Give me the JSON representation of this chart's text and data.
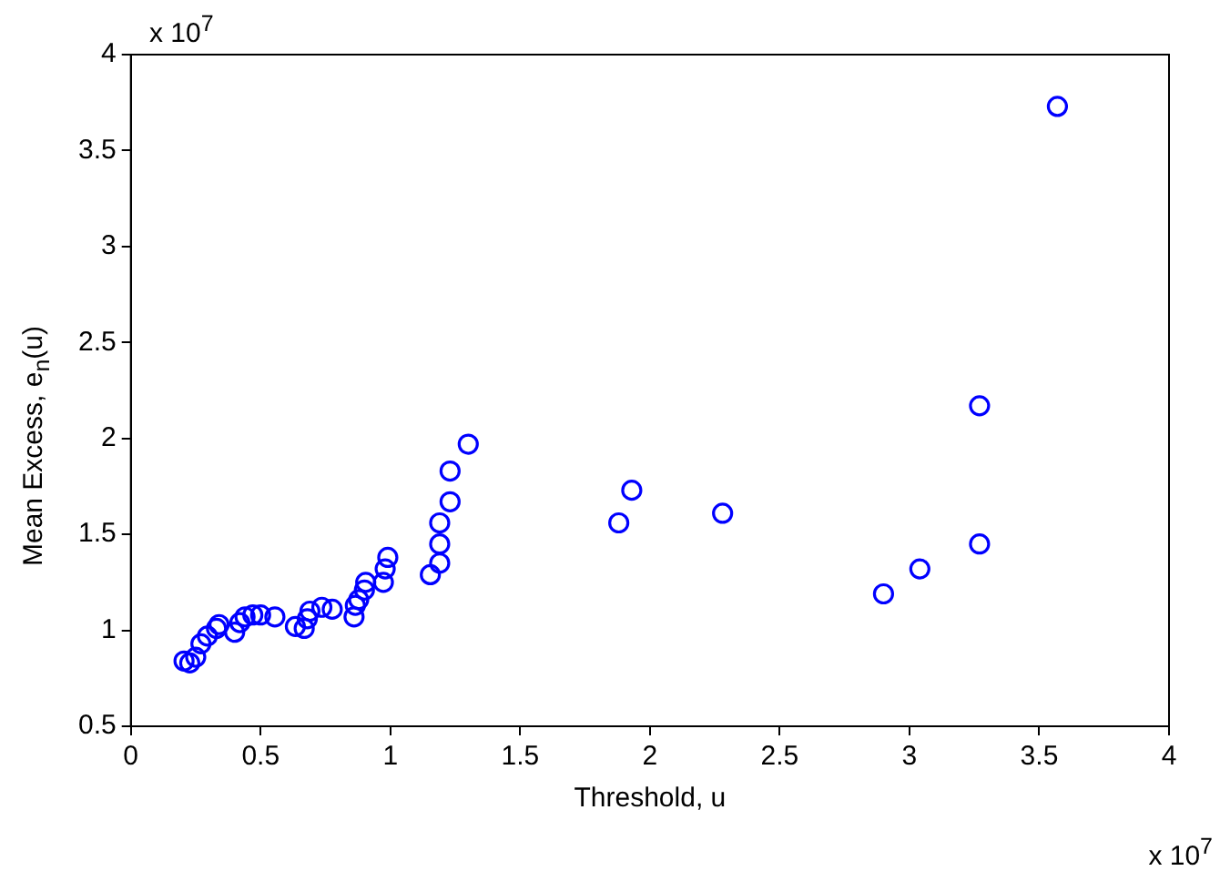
{
  "chart_data": {
    "type": "scatter",
    "xlabel": "Threshold, u",
    "ylabel": "Mean Excess, e$_{n}$(u)",
    "annotations": [
      "x 10$^{7}$",
      "x 10$^{7}$"
    ],
    "xlim": [
      0,
      4
    ],
    "ylim": [
      0.5,
      4
    ],
    "xticks": [
      0,
      0.5,
      1,
      1.5,
      2,
      2.5,
      3,
      3.5,
      4
    ],
    "yticks": [
      0.5,
      1,
      1.5,
      2,
      2.5,
      3,
      3.5,
      4
    ],
    "grid": false,
    "legend": false,
    "marker": "circle",
    "series": [
      {
        "color": "#0000ff",
        "x": [
          0.205,
          0.227,
          0.25,
          0.26,
          0.27,
          0.295,
          0.33,
          0.34,
          0.4,
          0.42,
          0.44,
          0.47,
          0.5,
          0.555,
          0.634,
          0.668,
          0.68,
          0.69,
          0.736,
          0.776,
          0.86,
          0.865,
          0.878,
          0.9,
          0.905,
          0.973,
          0.98,
          0.99,
          1.154,
          1.19,
          1.19,
          1.19,
          1.23,
          1.23,
          1.3,
          1.88,
          1.93,
          2.28,
          2.9,
          3.04,
          3.27,
          3.27,
          3.57
        ],
        "values": [
          0.84,
          0.83,
          0.86,
          null,
          0.93,
          0.97,
          1.01,
          1.03,
          0.99,
          1.04,
          1.07,
          1.08,
          1.08,
          1.07,
          1.02,
          1.01,
          1.06,
          1.1,
          1.12,
          1.11,
          1.07,
          1.13,
          1.16,
          1.21,
          1.25,
          1.25,
          1.32,
          1.38,
          1.29,
          1.35,
          1.45,
          1.56,
          1.67,
          1.83,
          1.97,
          1.56,
          1.73,
          1.61,
          1.19,
          1.32,
          1.45,
          2.17,
          3.73
        ]
      }
    ]
  }
}
